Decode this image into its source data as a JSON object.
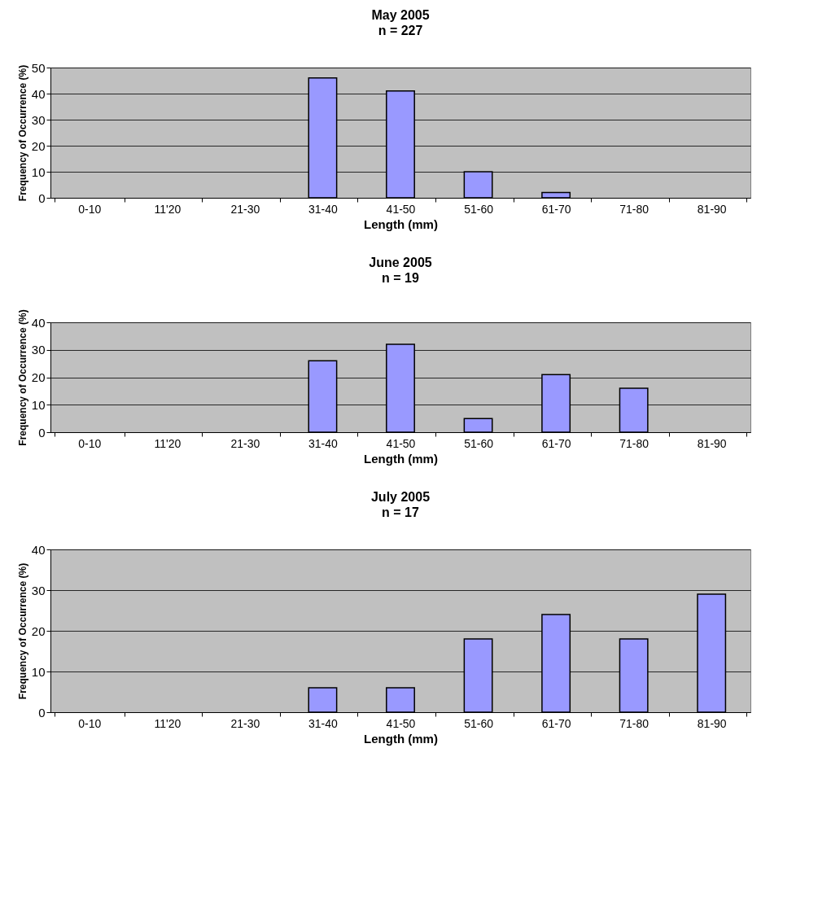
{
  "chart_data": [
    {
      "type": "bar",
      "title": "May 2005",
      "subtitle": "n = 227",
      "xlabel": "Length (mm)",
      "ylabel": "Frequency of Occurrence (%)",
      "categories": [
        "0-10",
        "11'20",
        "21-30",
        "31-40",
        "41-50",
        "51-60",
        "61-70",
        "71-80",
        "81-90"
      ],
      "values": [
        null,
        null,
        null,
        46,
        41,
        10,
        2,
        null,
        null
      ],
      "color": "#9999ff",
      "ylim": [
        0,
        50
      ],
      "yticks": [
        0,
        10,
        20,
        30,
        40,
        50
      ],
      "grid": "y"
    },
    {
      "type": "bar",
      "title": "June 2005",
      "subtitle": "n = 19",
      "xlabel": "Length (mm)",
      "ylabel": "Frequency of Occurrence (%)",
      "categories": [
        "0-10",
        "11'20",
        "21-30",
        "31-40",
        "41-50",
        "51-60",
        "61-70",
        "71-80",
        "81-90"
      ],
      "values": [
        null,
        null,
        null,
        26,
        32,
        5,
        21,
        16,
        null
      ],
      "color": "#9999ff",
      "ylim": [
        0,
        40
      ],
      "yticks": [
        0,
        10,
        20,
        30,
        40
      ],
      "grid": "y"
    },
    {
      "type": "bar",
      "title": "July 2005",
      "subtitle": "n = 17",
      "xlabel": "Length (mm)",
      "ylabel": "Frequency of Occurrence (%)",
      "categories": [
        "0-10",
        "11'20",
        "21-30",
        "31-40",
        "41-50",
        "51-60",
        "61-70",
        "71-80",
        "81-90"
      ],
      "values": [
        null,
        null,
        null,
        6,
        6,
        18,
        24,
        18,
        29
      ],
      "color": "#9999ff",
      "ylim": [
        0,
        40
      ],
      "yticks": [
        0,
        10,
        20,
        30,
        40
      ],
      "grid": "y"
    }
  ]
}
